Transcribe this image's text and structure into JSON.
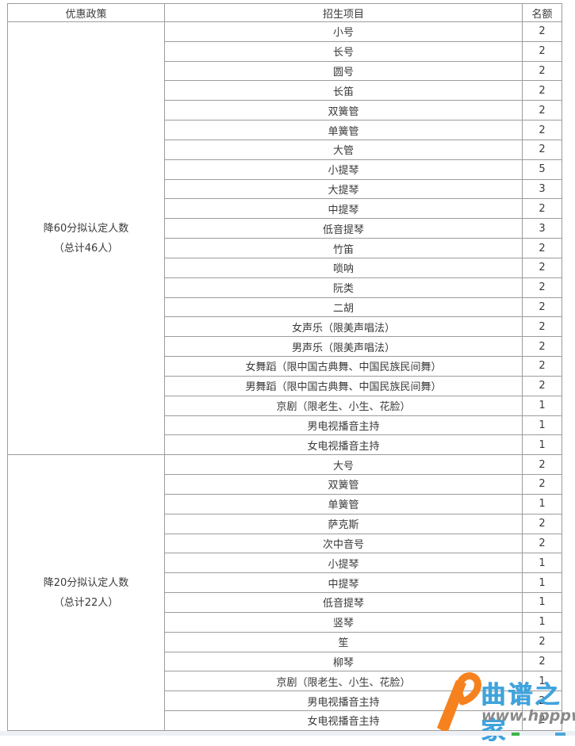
{
  "table": {
    "headers": [
      "优惠政策",
      "招生项目",
      "名额"
    ],
    "sections": [
      {
        "policy_line1": "降60分拟认定人数",
        "policy_line2": "（总计46人）",
        "rows": [
          {
            "project": "小号",
            "quota": "2"
          },
          {
            "project": "长号",
            "quota": "2"
          },
          {
            "project": "圆号",
            "quota": "2"
          },
          {
            "project": "长笛",
            "quota": "2"
          },
          {
            "project": "双簧管",
            "quota": "2"
          },
          {
            "project": "单簧管",
            "quota": "2"
          },
          {
            "project": "大管",
            "quota": "2"
          },
          {
            "project": "小提琴",
            "quota": "5"
          },
          {
            "project": "大提琴",
            "quota": "3"
          },
          {
            "project": "中提琴",
            "quota": "2"
          },
          {
            "project": "低音提琴",
            "quota": "3"
          },
          {
            "project": "竹笛",
            "quota": "2"
          },
          {
            "project": "唢呐",
            "quota": "2"
          },
          {
            "project": "阮类",
            "quota": "2"
          },
          {
            "project": "二胡",
            "quota": "2"
          },
          {
            "project": "女声乐（限美声唱法）",
            "quota": "2"
          },
          {
            "project": "男声乐（限美声唱法）",
            "quota": "2"
          },
          {
            "project": "女舞蹈（限中国古典舞、中国民族民间舞）",
            "quota": "2"
          },
          {
            "project": "男舞蹈（限中国古典舞、中国民族民间舞）",
            "quota": "2"
          },
          {
            "project": "京剧（限老生、小生、花脸）",
            "quota": "1"
          },
          {
            "project": "男电视播音主持",
            "quota": "1"
          },
          {
            "project": "女电视播音主持",
            "quota": "1"
          }
        ]
      },
      {
        "policy_line1": "降20分拟认定人数",
        "policy_line2": "（总计22人）",
        "rows": [
          {
            "project": "大号",
            "quota": "2"
          },
          {
            "project": "双簧管",
            "quota": "2"
          },
          {
            "project": "单簧管",
            "quota": "1"
          },
          {
            "project": "萨克斯",
            "quota": "2"
          },
          {
            "project": "次中音号",
            "quota": "2"
          },
          {
            "project": "小提琴",
            "quota": "1"
          },
          {
            "project": "中提琴",
            "quota": "1"
          },
          {
            "project": "低音提琴",
            "quota": "1"
          },
          {
            "project": "竖琴",
            "quota": "1"
          },
          {
            "project": "笙",
            "quota": "2"
          },
          {
            "project": "柳琴",
            "quota": "2"
          },
          {
            "project": "京剧（限老生、小生、花脸）",
            "quota": "1"
          },
          {
            "project": "男电视播音主持",
            "quota": "2"
          },
          {
            "project": "女电视播音主持",
            "quota": "2"
          }
        ]
      }
    ]
  },
  "watermark": {
    "site_name": "曲谱之家",
    "site_url": "www.hpppw.com"
  },
  "colors": {
    "border": "#9c9c9c",
    "text": "#3a3a3a",
    "watermark_orange": "#f5821f",
    "watermark_blue": "#3fa3dc",
    "watermark_url_gray": "#8a8a8a",
    "bottom_strip": "#edf1f6"
  }
}
